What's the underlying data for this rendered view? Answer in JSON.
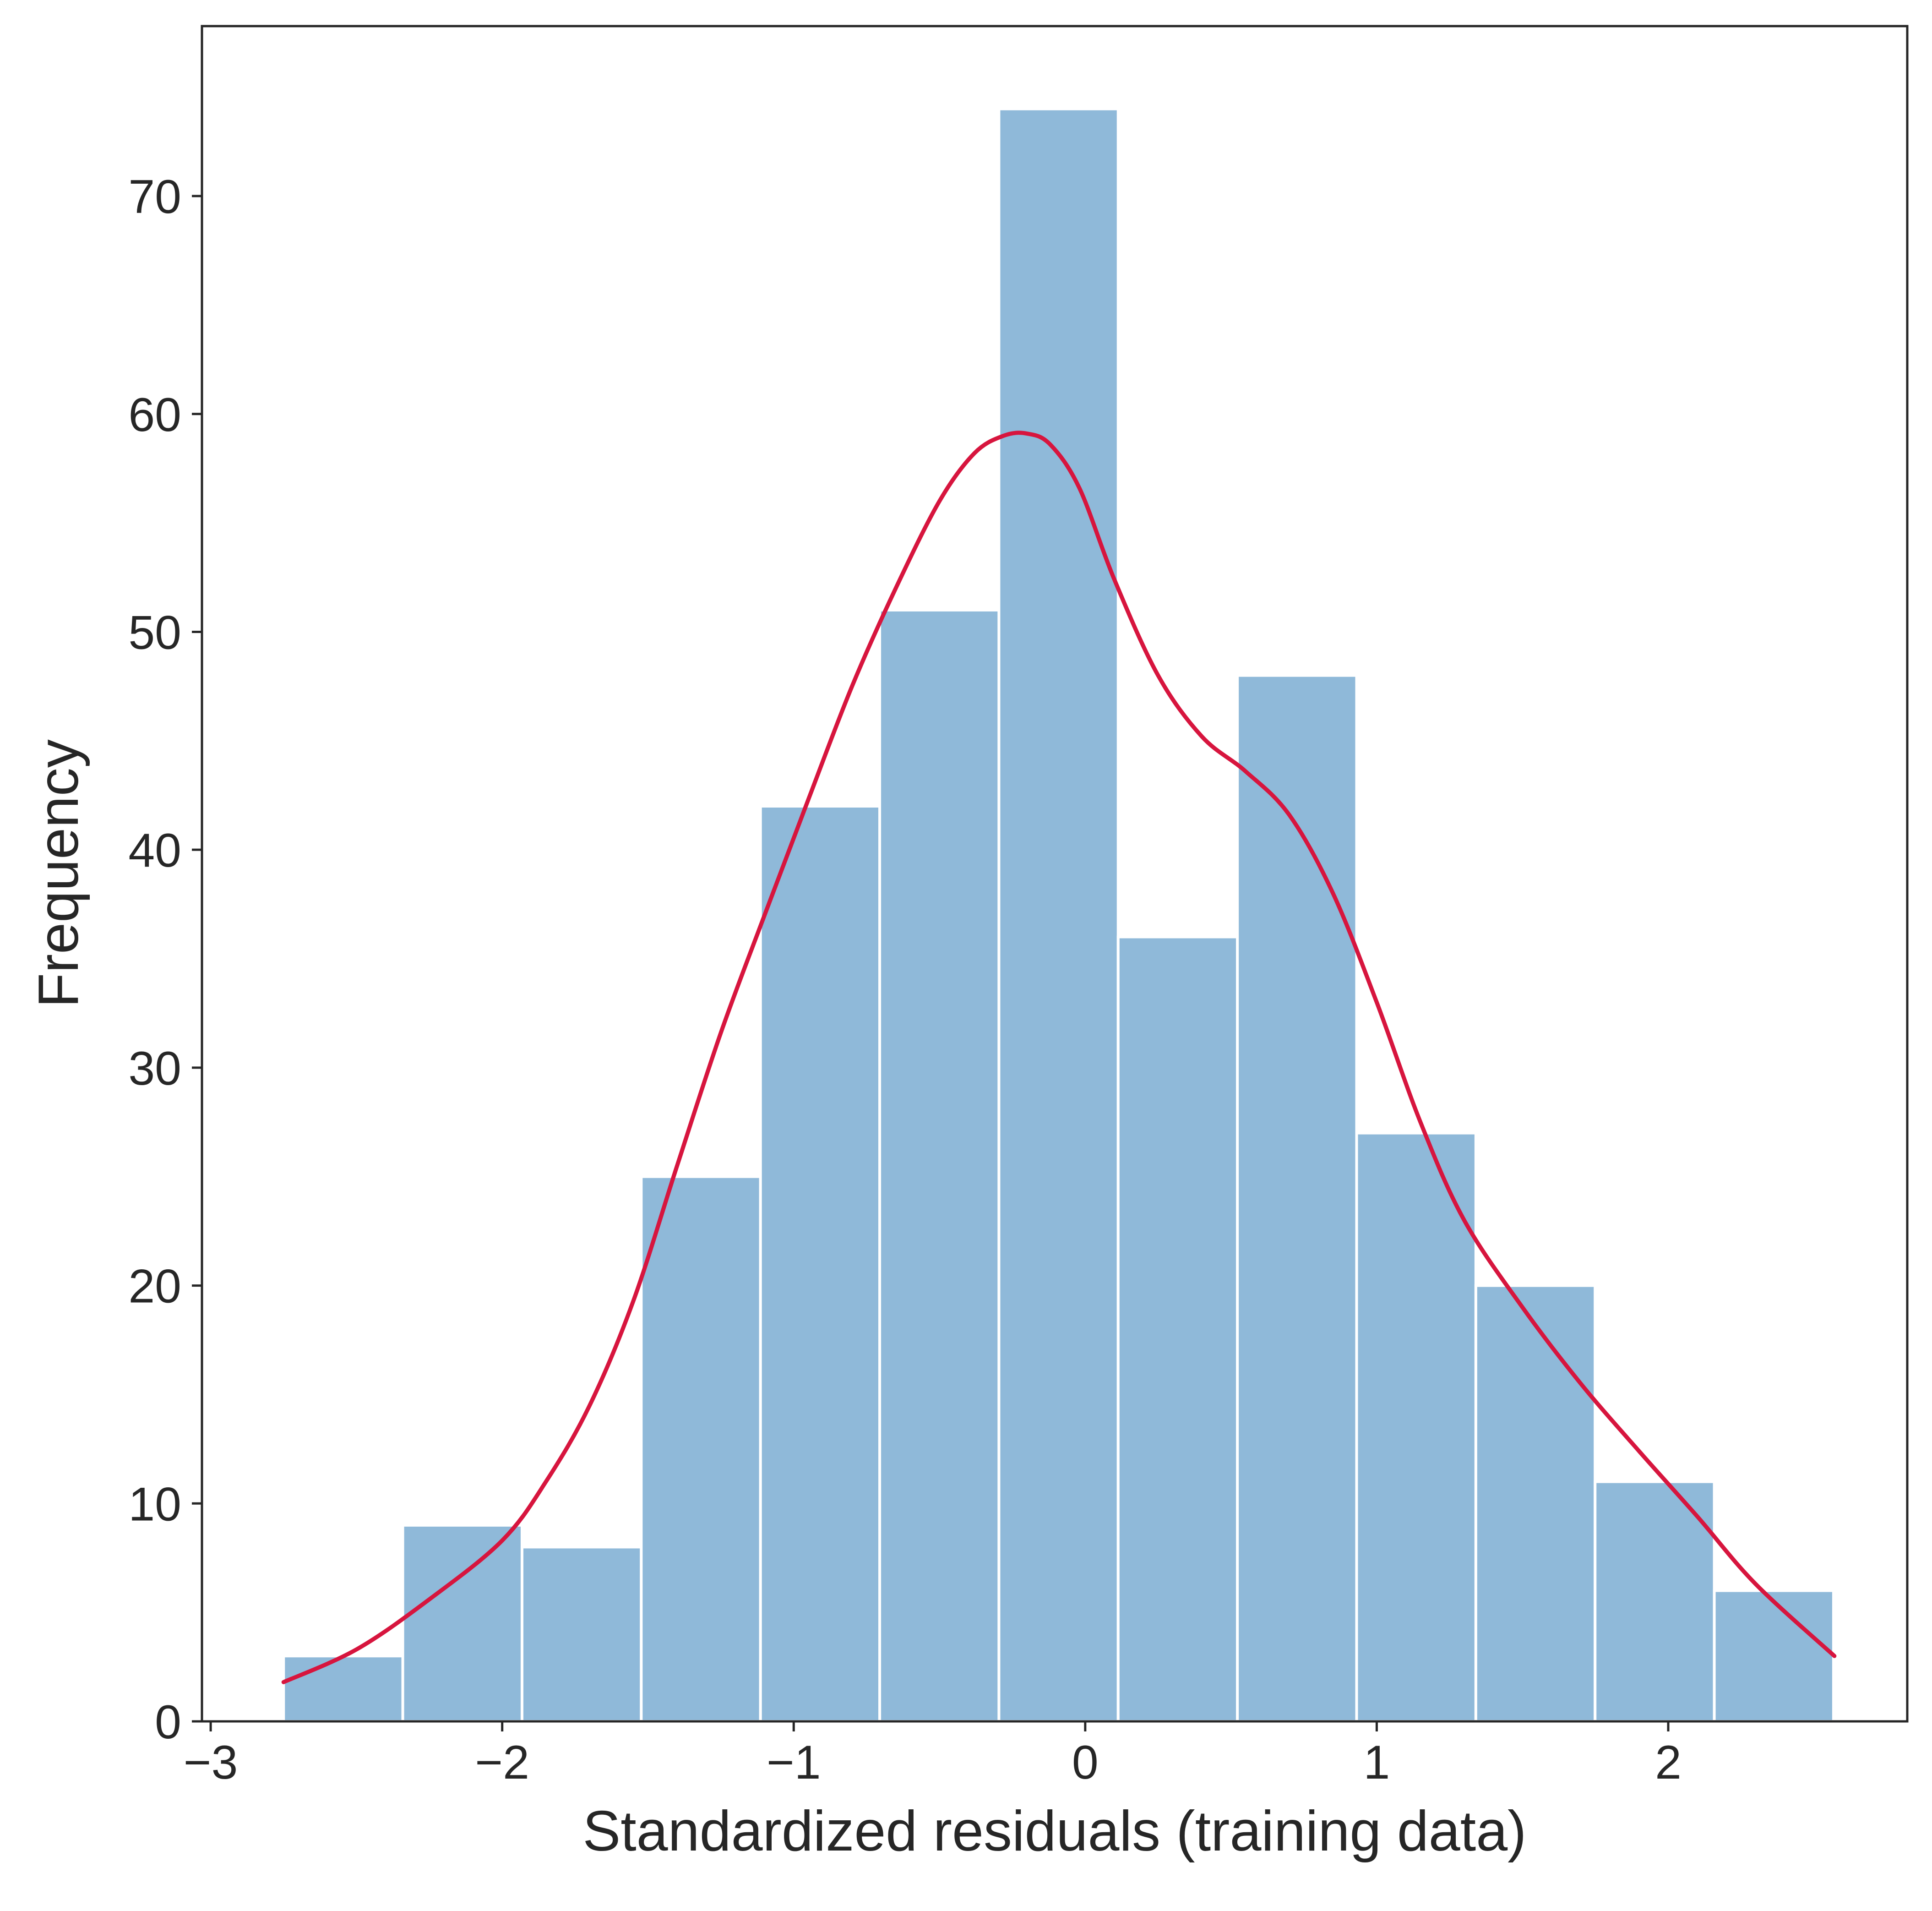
{
  "chart_data": {
    "type": "bar",
    "xlabel": "Standardized residuals (training data)",
    "ylabel": "Frequency",
    "xlim": [
      -3.03,
      2.82
    ],
    "ylim": [
      0,
      77.8
    ],
    "xticks": [
      -3,
      -2,
      -1,
      0,
      1,
      2
    ],
    "xtick_labels": [
      "−3",
      "−2",
      "−1",
      "0",
      "1",
      "2"
    ],
    "yticks": [
      0,
      10,
      20,
      30,
      40,
      50,
      60,
      70
    ],
    "ytick_labels": [
      "0",
      "10",
      "20",
      "30",
      "40",
      "50",
      "60",
      "70"
    ],
    "bin_edges": [
      -2.75,
      -2.341,
      -1.932,
      -1.523,
      -1.114,
      -0.705,
      -0.296,
      0.113,
      0.522,
      0.931,
      1.34,
      1.749,
      2.158,
      2.567
    ],
    "counts": [
      3,
      9,
      8,
      25,
      42,
      51,
      74,
      36,
      48,
      27,
      20,
      11,
      6
    ],
    "bar_color": "#8fb9d9",
    "kde_color": "#d7153e",
    "kde": {
      "x": [
        -2.75,
        -2.5,
        -2.25,
        -2.0,
        -1.85,
        -1.7,
        -1.55,
        -1.4,
        -1.25,
        -1.1,
        -0.95,
        -0.8,
        -0.65,
        -0.5,
        -0.38,
        -0.28,
        -0.2,
        -0.12,
        -0.02,
        0.1,
        0.25,
        0.4,
        0.55,
        0.7,
        0.85,
        1.0,
        1.15,
        1.3,
        1.5,
        1.7,
        1.9,
        2.1,
        2.3,
        2.57
      ],
      "y": [
        1.8,
        3.3,
        5.6,
        8.3,
        11.0,
        14.5,
        19.3,
        25.5,
        31.6,
        37.0,
        42.3,
        47.5,
        52.0,
        56.0,
        58.2,
        59.0,
        59.1,
        58.6,
        56.6,
        52.4,
        48.0,
        45.2,
        43.6,
        41.6,
        38.0,
        33.0,
        27.5,
        23.0,
        19.0,
        15.5,
        12.4,
        9.4,
        6.3,
        3.0
      ]
    },
    "grid": false,
    "legend": "none"
  }
}
